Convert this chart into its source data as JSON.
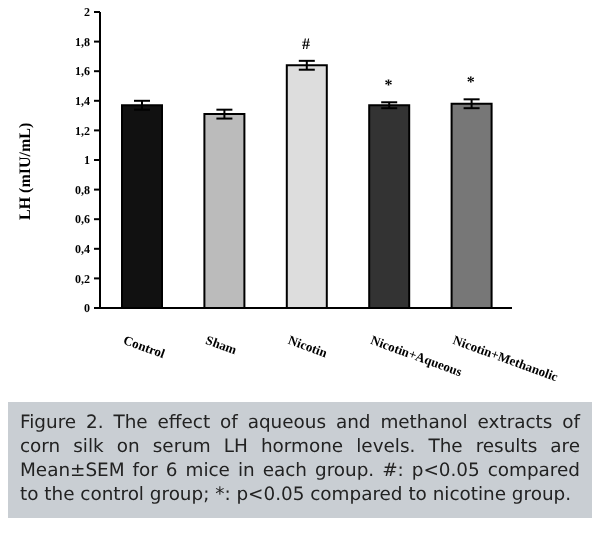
{
  "chart_data": {
    "type": "bar",
    "ylabel": "LH (mIU/mL)",
    "categories": [
      "Control",
      "Sham",
      "Nicotin",
      "Nicotin+Aqueous",
      "Nicotin+Methanolic"
    ],
    "values": [
      1.37,
      1.31,
      1.64,
      1.37,
      1.38
    ],
    "errors": [
      0.03,
      0.03,
      0.03,
      0.02,
      0.03
    ],
    "colors": [
      "#111111",
      "#bbbbbb",
      "#dddddd",
      "#333333",
      "#777777"
    ],
    "ylim": [
      0,
      2
    ],
    "yticks": [
      0,
      {
        "value": 0.2,
        "label": "0,2"
      },
      {
        "value": 0.4,
        "label": "0,4"
      },
      {
        "value": 0.6,
        "label": "0,6"
      },
      {
        "value": 0.8,
        "label": "0,8"
      },
      1,
      {
        "value": 1.2,
        "label": "1,2"
      },
      {
        "value": 1.4,
        "label": "1,4"
      },
      {
        "value": 1.6,
        "label": "1,6"
      },
      {
        "value": 1.8,
        "label": "1,8"
      },
      2
    ],
    "grid": false,
    "annotations": [
      {
        "text": "#",
        "x": "Nicotin",
        "y": 1.67
      },
      {
        "text": "*",
        "x": "Nicotin+Aqueous",
        "y": 1.39
      },
      {
        "text": "*",
        "x": "Nicotin+Methanolic",
        "y": 1.41
      },
      "Figure 2. The effect of aqueous and methanol extracts of corn silk on serum LH hormone levels. The results are Mean±SEM for 6 mice in each group. #: p<0.05 compared to the control group; *: p<0.05 compared to nicotine group."
    ]
  }
}
